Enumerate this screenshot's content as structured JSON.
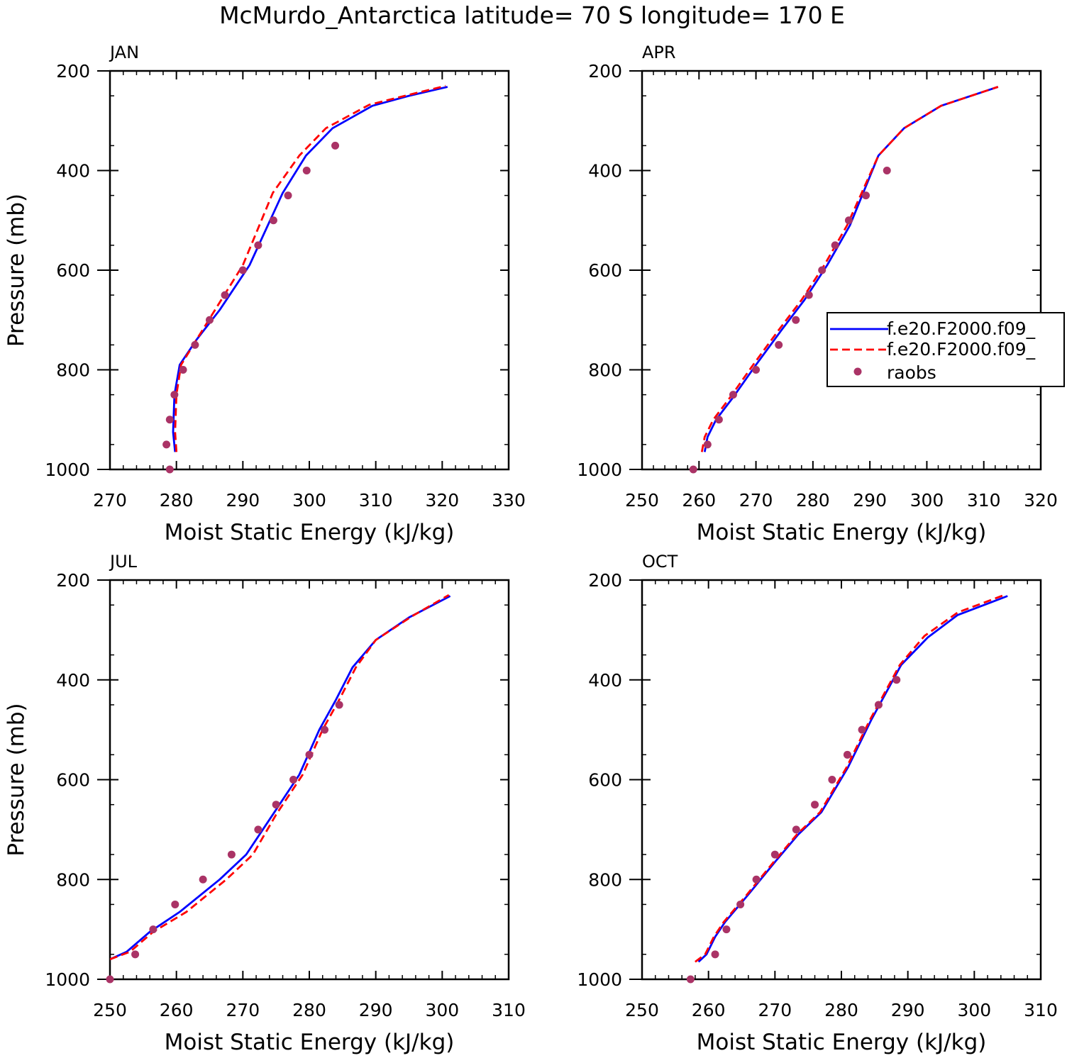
{
  "title": "McMurdo_Antarctica  latitude= 70 S longitude= 170 E",
  "colors": {
    "model1": "#0000ff",
    "model2": "#ff0000",
    "raobs": "#aa3366",
    "axis": "#000000"
  },
  "legend": {
    "entries": [
      {
        "label": "f.e20.F2000.f09_",
        "style": "solid",
        "color_key": "model1"
      },
      {
        "label": "f.e20.F2000.f09_",
        "style": "dashed",
        "color_key": "model2"
      },
      {
        "label": "raobs",
        "style": "marker",
        "color_key": "raobs"
      }
    ]
  },
  "chart_data": [
    {
      "type": "line",
      "panel": "JAN",
      "xlabel": "Moist Static Energy (kJ/kg)",
      "ylabel": "Pressure (mb)",
      "xlim": [
        270,
        330
      ],
      "ylim": [
        1000,
        200
      ],
      "xticks": [
        270,
        280,
        290,
        300,
        310,
        320,
        330
      ],
      "yticks": [
        200,
        400,
        600,
        800,
        1000
      ],
      "show_ylabel": true,
      "series": [
        {
          "style": "solid",
          "color_key": "model1",
          "x": [
            279.8,
            279.5,
            279.7,
            280.5,
            283.0,
            286.5,
            291.0,
            296.0,
            299.5,
            303.5,
            309.5,
            315.0,
            320.8
          ],
          "y": [
            965,
            925,
            850,
            790,
            740,
            680,
            590,
            445,
            370,
            315,
            270,
            250,
            232
          ]
        },
        {
          "style": "dashed",
          "color_key": "model2",
          "x": [
            280.0,
            279.8,
            280.0,
            280.7,
            283.0,
            285.8,
            290.0,
            294.5,
            298.5,
            302.5,
            309.0,
            315.0,
            320.5
          ],
          "y": [
            965,
            925,
            850,
            790,
            740,
            680,
            590,
            445,
            370,
            315,
            268,
            248,
            230
          ]
        },
        {
          "style": "marker",
          "color_key": "raobs",
          "x": [
            279.0,
            278.5,
            279.0,
            279.7,
            281.0,
            282.8,
            285.0,
            287.3,
            290.0,
            292.3,
            294.6,
            296.8,
            299.6,
            303.9
          ],
          "y": [
            1000,
            950,
            900,
            850,
            800,
            750,
            700,
            650,
            600,
            550,
            500,
            450,
            400,
            350
          ]
        }
      ]
    },
    {
      "type": "line",
      "panel": "APR",
      "xlabel": "Moist Static Energy (kJ/kg)",
      "ylabel": "",
      "xlim": [
        250,
        320
      ],
      "ylim": [
        1000,
        200
      ],
      "xticks": [
        250,
        260,
        270,
        280,
        290,
        300,
        310,
        320
      ],
      "yticks": [
        200,
        400,
        600,
        800,
        1000
      ],
      "show_ylabel": false,
      "series": [
        {
          "style": "solid",
          "color_key": "model1",
          "x": [
            261.0,
            261.5,
            263.0,
            266.0,
            270.0,
            274.5,
            278.5,
            282.5,
            286.5,
            291.5,
            296.0,
            302.5,
            312.5
          ],
          "y": [
            965,
            935,
            900,
            855,
            790,
            720,
            660,
            590,
            510,
            370,
            315,
            270,
            232
          ]
        },
        {
          "style": "dashed",
          "color_key": "model2",
          "x": [
            260.5,
            261.0,
            262.5,
            265.5,
            269.5,
            274.0,
            278.0,
            282.0,
            286.0,
            291.5,
            296.0,
            302.5,
            312.5
          ],
          "y": [
            965,
            935,
            900,
            855,
            790,
            720,
            660,
            590,
            510,
            370,
            315,
            270,
            232
          ]
        },
        {
          "style": "marker",
          "color_key": "raobs",
          "x": [
            259.0,
            261.5,
            263.5,
            266.0,
            270.0,
            274.0,
            277.0,
            279.3,
            281.6,
            283.9,
            286.3,
            289.3,
            293.0
          ],
          "y": [
            1000,
            950,
            900,
            850,
            800,
            750,
            700,
            650,
            600,
            550,
            500,
            450,
            400
          ]
        }
      ]
    },
    {
      "type": "line",
      "panel": "JUL",
      "xlabel": "Moist Static Energy (kJ/kg)",
      "ylabel": "Pressure (mb)",
      "xlim": [
        250,
        310
      ],
      "ylim": [
        1000,
        200
      ],
      "xticks": [
        250,
        260,
        270,
        280,
        290,
        300,
        310
      ],
      "yticks": [
        200,
        400,
        600,
        800,
        1000
      ],
      "show_ylabel": true,
      "series": [
        {
          "style": "solid",
          "color_key": "model1",
          "x": [
            250.0,
            252.5,
            256.0,
            260.5,
            266.5,
            270.5,
            274.5,
            278.5,
            281.5,
            284.0,
            286.5,
            290.0,
            295.0,
            301.2
          ],
          "y": [
            960,
            945,
            905,
            865,
            800,
            750,
            670,
            590,
            500,
            440,
            375,
            320,
            275,
            232
          ]
        },
        {
          "style": "dashed",
          "color_key": "model2",
          "x": [
            250.0,
            253.0,
            256.5,
            261.5,
            267.5,
            271.5,
            275.0,
            279.0,
            282.0,
            284.5,
            287.0,
            290.0,
            295.5,
            301.0
          ],
          "y": [
            960,
            945,
            905,
            865,
            800,
            750,
            670,
            590,
            500,
            440,
            375,
            320,
            272,
            230
          ]
        },
        {
          "style": "marker",
          "color_key": "raobs",
          "x": [
            250.0,
            253.8,
            256.5,
            259.8,
            264.0,
            268.3,
            272.3,
            275.0,
            277.6,
            280.0,
            282.3,
            284.5
          ],
          "y": [
            1000,
            950,
            900,
            850,
            800,
            750,
            700,
            650,
            600,
            550,
            500,
            450
          ]
        }
      ]
    },
    {
      "type": "line",
      "panel": "OCT",
      "xlabel": "Moist Static Energy (kJ/kg)",
      "ylabel": "",
      "xlim": [
        250,
        310
      ],
      "ylim": [
        1000,
        200
      ],
      "xticks": [
        250,
        260,
        270,
        280,
        290,
        300,
        310
      ],
      "yticks": [
        200,
        400,
        600,
        800,
        1000
      ],
      "show_ylabel": false,
      "series": [
        {
          "style": "solid",
          "color_key": "model1",
          "x": [
            258.5,
            259.7,
            261.0,
            262.5,
            266.0,
            270.0,
            273.5,
            277.0,
            281.0,
            284.5,
            289.0,
            293.0,
            297.5,
            305.0
          ],
          "y": [
            965,
            950,
            915,
            885,
            830,
            765,
            710,
            665,
            575,
            480,
            370,
            315,
            270,
            232
          ]
        },
        {
          "style": "dashed",
          "color_key": "model2",
          "x": [
            258.0,
            259.5,
            260.8,
            262.3,
            265.8,
            269.8,
            273.3,
            276.8,
            280.8,
            284.3,
            288.8,
            292.5,
            297.5,
            304.5
          ],
          "y": [
            965,
            950,
            915,
            885,
            830,
            765,
            710,
            665,
            575,
            480,
            370,
            312,
            265,
            230
          ]
        },
        {
          "style": "marker",
          "color_key": "raobs",
          "x": [
            257.3,
            261.0,
            262.7,
            264.8,
            267.2,
            270.0,
            273.2,
            276.0,
            278.6,
            280.9,
            283.1,
            285.6,
            288.3
          ],
          "y": [
            1000,
            950,
            900,
            850,
            800,
            750,
            700,
            650,
            600,
            550,
            500,
            450,
            400
          ]
        }
      ]
    }
  ]
}
